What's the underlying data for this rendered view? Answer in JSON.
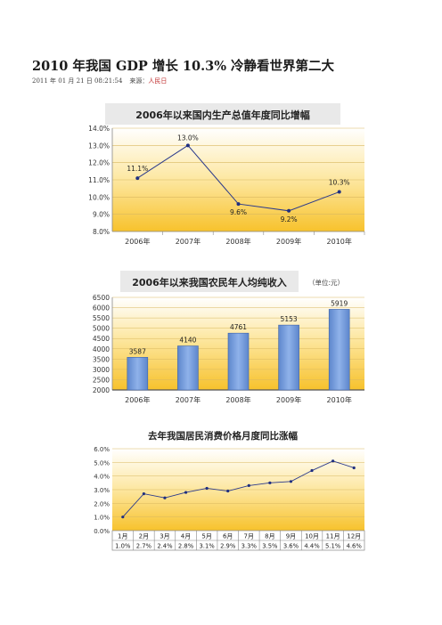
{
  "article": {
    "title": "2010 年我国 GDP 增长 10.3%  冷静看世界第二大",
    "date": "2011 年 01 月 21 日  08:21:54",
    "source_label": "来源：",
    "source_name": "人民日"
  },
  "chart_data": [
    {
      "type": "line",
      "title": "2006年以来国内生产总值年度同比增幅",
      "categories": [
        "2006年",
        "2007年",
        "2008年",
        "2009年",
        "2010年"
      ],
      "values": [
        11.1,
        13.0,
        9.6,
        9.2,
        10.3
      ],
      "labels": [
        "11.1%",
        "13.0%",
        "9.6%",
        "9.2%",
        "10.3%"
      ],
      "y_ticks": [
        "8.0%",
        "9.0%",
        "10.0%",
        "11.0%",
        "12.0%",
        "13.0%",
        "14.0%"
      ],
      "ylim": [
        8,
        14
      ],
      "colors": {
        "line": "#2b3a8c",
        "marker": "#1f2f80",
        "title_bg": "#e9e9e9"
      }
    },
    {
      "type": "bar",
      "title": "2006年以来我国农民年人均纯收入",
      "unit_note": "（单位:元）",
      "categories": [
        "2006年",
        "2007年",
        "2008年",
        "2009年",
        "2010年"
      ],
      "values": [
        3587,
        4140,
        4761,
        5153,
        5919
      ],
      "labels": [
        "3587",
        "4140",
        "4761",
        "5153",
        "5919"
      ],
      "y_ticks": [
        "2000",
        "2500",
        "3000",
        "3500",
        "4000",
        "4500",
        "5000",
        "5500",
        "6000",
        "6500"
      ],
      "ylim": [
        2000,
        6500
      ],
      "colors": {
        "bar": "#6f97d8",
        "bar_edge": "#3e63a8",
        "title_bg": "#e9e9e9"
      }
    },
    {
      "type": "line",
      "title": "去年我国居民消费价格月度同比涨幅",
      "categories": [
        "1月",
        "2月",
        "3月",
        "4月",
        "5月",
        "6月",
        "7月",
        "8月",
        "9月",
        "10月",
        "11月",
        "12月"
      ],
      "values": [
        1.0,
        2.7,
        2.4,
        2.8,
        3.1,
        2.9,
        3.3,
        3.5,
        3.6,
        4.4,
        5.1,
        4.6
      ],
      "labels": [
        "1.0%",
        "2.7%",
        "2.4%",
        "2.8%",
        "3.1%",
        "2.9%",
        "3.3%",
        "3.5%",
        "3.6%",
        "4.4%",
        "5.1%",
        "4.6%"
      ],
      "y_ticks": [
        "0.0%",
        "1.0%",
        "2.0%",
        "3.0%",
        "4.0%",
        "5.0%",
        "6.0%"
      ],
      "ylim": [
        0,
        6
      ],
      "colors": {
        "line": "#2b3a8c",
        "marker": "#1f2f80",
        "title_bg": "#ffffff"
      }
    }
  ]
}
